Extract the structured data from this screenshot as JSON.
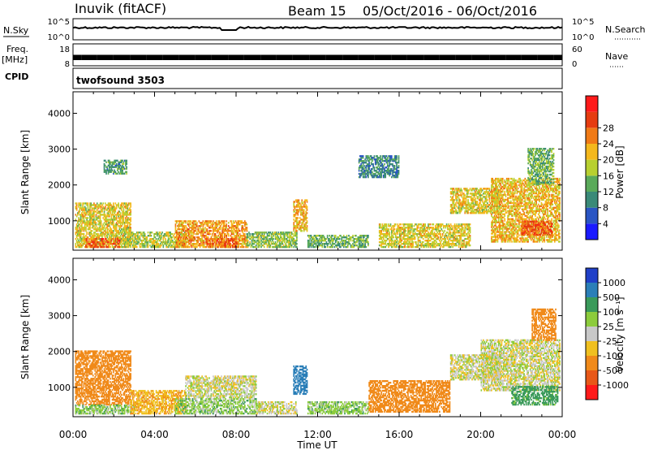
{
  "header": {
    "station": "Inuvik (fitACF)",
    "beam": "Beam 15",
    "date_range": "05/Oct/2016 - 06/Oct/2016"
  },
  "top_panels": {
    "nsky": {
      "left_label": "N.Sky",
      "left_ticks": [
        "10^5",
        "10^0"
      ],
      "right_label": "N.Search",
      "right_ticks": [
        "10^5",
        "10^0"
      ]
    },
    "freq": {
      "left_label_1": "Freq.",
      "left_label_2": "[MHz]",
      "left_ticks": [
        "18",
        "8"
      ],
      "right_label": "Nave",
      "right_ticks": [
        "60",
        "0"
      ]
    },
    "cpid": {
      "label": "CPID",
      "program": "twofsound 3503"
    }
  },
  "axes": {
    "xlabel": "Time UT",
    "ylabel": "Slant Range [km]",
    "x_ticks": [
      "00:00",
      "04:00",
      "08:00",
      "12:00",
      "16:00",
      "20:00",
      "00:00"
    ],
    "y_ticks": [
      "1000",
      "2000",
      "3000",
      "4000"
    ]
  },
  "power_scale": {
    "label": "Power [dB]",
    "ticks": [
      "4",
      "8",
      "12",
      "16",
      "20",
      "24",
      "28"
    ],
    "colors": [
      "#1a1aff",
      "#2a55c4",
      "#3a8a78",
      "#5aaa5a",
      "#b8d030",
      "#f4b81c",
      "#f07a16",
      "#e63c10",
      "#ff1a1a"
    ]
  },
  "velocity_scale": {
    "label": "Velocity [m s⁻¹]",
    "ticks": [
      "1000",
      "500",
      "100",
      "25",
      "-25",
      "-100",
      "-500",
      "-1000"
    ],
    "colors": [
      "#2040c8",
      "#2b7fb8",
      "#3a9a5a",
      "#8ccc3c",
      "#c8c8c8",
      "#f0c020",
      "#f08a1a",
      "#e85818",
      "#ff1a1a"
    ]
  },
  "chart_data": [
    {
      "type": "heatmap",
      "title": "Power [dB]",
      "xlabel": "Time UT",
      "ylabel": "Slant Range [km]",
      "xlim": [
        0,
        24
      ],
      "ylim": [
        180,
        4600
      ],
      "x_unit": "hours UT",
      "regions": [
        {
          "t0": 0.1,
          "t1": 2.8,
          "r0": 250,
          "r1": 1500,
          "value": 20
        },
        {
          "t0": 0.6,
          "t1": 2.3,
          "r0": 250,
          "r1": 480,
          "value": 28
        },
        {
          "t0": 1.5,
          "t1": 2.6,
          "r0": 2300,
          "r1": 2700,
          "value": 12
        },
        {
          "t0": 2.5,
          "t1": 5.5,
          "r0": 250,
          "r1": 700,
          "value": 18
        },
        {
          "t0": 5.0,
          "t1": 8.5,
          "r0": 250,
          "r1": 1000,
          "value": 24
        },
        {
          "t0": 6.5,
          "t1": 8.0,
          "r0": 250,
          "r1": 500,
          "value": 28
        },
        {
          "t0": 8.5,
          "t1": 11.0,
          "r0": 250,
          "r1": 700,
          "value": 16
        },
        {
          "t0": 10.8,
          "t1": 11.5,
          "r0": 700,
          "r1": 1600,
          "value": 22
        },
        {
          "t0": 11.5,
          "t1": 14.5,
          "r0": 250,
          "r1": 600,
          "value": 14
        },
        {
          "t0": 14.0,
          "t1": 16.0,
          "r0": 2200,
          "r1": 2800,
          "value": 10
        },
        {
          "t0": 15.0,
          "t1": 19.5,
          "r0": 250,
          "r1": 900,
          "value": 20
        },
        {
          "t0": 18.5,
          "t1": 21.0,
          "r0": 1200,
          "r1": 1900,
          "value": 20
        },
        {
          "t0": 20.5,
          "t1": 23.9,
          "r0": 400,
          "r1": 2200,
          "value": 22
        },
        {
          "t0": 22.0,
          "t1": 23.5,
          "r0": 600,
          "r1": 1000,
          "value": 28
        },
        {
          "t0": 22.3,
          "t1": 23.6,
          "r0": 2000,
          "r1": 3000,
          "value": 14
        }
      ]
    },
    {
      "type": "heatmap",
      "title": "Velocity [m s⁻¹]",
      "xlabel": "Time UT",
      "ylabel": "Slant Range [km]",
      "xlim": [
        0,
        24
      ],
      "ylim": [
        180,
        4600
      ],
      "x_unit": "hours UT",
      "regions": [
        {
          "t0": 0.1,
          "t1": 2.8,
          "r0": 500,
          "r1": 2000,
          "value": -300
        },
        {
          "t0": 0.1,
          "t1": 3.0,
          "r0": 250,
          "r1": 500,
          "value": 60
        },
        {
          "t0": 2.8,
          "t1": 5.5,
          "r0": 250,
          "r1": 900,
          "value": -80
        },
        {
          "t0": 5.5,
          "t1": 9.0,
          "r0": 700,
          "r1": 1300,
          "value": 0
        },
        {
          "t0": 5.0,
          "t1": 9.0,
          "r0": 250,
          "r1": 700,
          "value": 60
        },
        {
          "t0": 9.0,
          "t1": 11.0,
          "r0": 250,
          "r1": 600,
          "value": 0
        },
        {
          "t0": 10.8,
          "t1": 11.5,
          "r0": 800,
          "r1": 1600,
          "value": 600
        },
        {
          "t0": 11.5,
          "t1": 14.5,
          "r0": 250,
          "r1": 600,
          "value": 60
        },
        {
          "t0": 14.5,
          "t1": 18.5,
          "r0": 300,
          "r1": 1200,
          "value": -300
        },
        {
          "t0": 18.5,
          "t1": 21.0,
          "r0": 1200,
          "r1": 1900,
          "value": 0
        },
        {
          "t0": 20.0,
          "t1": 23.9,
          "r0": 900,
          "r1": 2300,
          "value": 0
        },
        {
          "t0": 21.5,
          "t1": 23.8,
          "r0": 500,
          "r1": 1000,
          "value": 150
        },
        {
          "t0": 22.5,
          "t1": 23.7,
          "r0": 2300,
          "r1": 3200,
          "value": -200
        }
      ]
    }
  ]
}
